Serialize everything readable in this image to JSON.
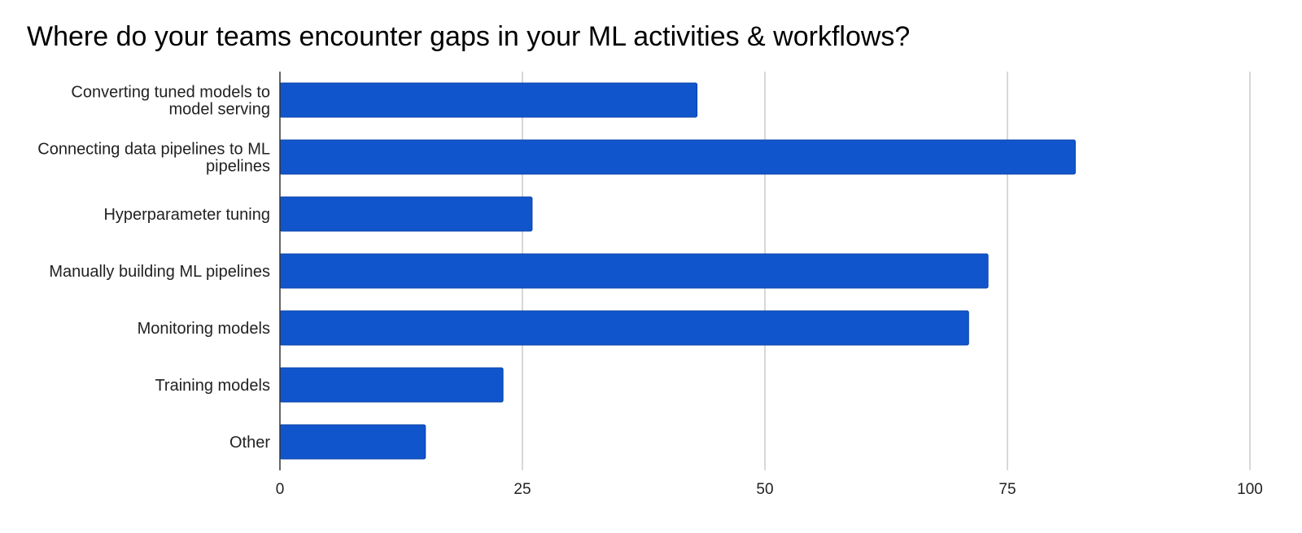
{
  "chart_data": {
    "type": "bar",
    "orientation": "horizontal",
    "title": "Where do your teams encounter gaps in your ML activities & workflows?",
    "categories": [
      "Converting tuned models to model serving",
      "Connecting data pipelines to ML pipelines",
      "Hyperparameter tuning",
      "Manually building ML pipelines",
      "Monitoring models",
      "Training models",
      "Other"
    ],
    "category_lines": [
      [
        "Converting tuned models to",
        "model serving"
      ],
      [
        "Connecting data pipelines to ML",
        "pipelines"
      ],
      [
        "Hyperparameter tuning"
      ],
      [
        "Manually building ML pipelines"
      ],
      [
        "Monitoring models"
      ],
      [
        "Training models"
      ],
      [
        "Other"
      ]
    ],
    "values": [
      43,
      82,
      26,
      73,
      71,
      23,
      15
    ],
    "xlim": [
      0,
      100
    ],
    "xticks": [
      0,
      25,
      50,
      75,
      100
    ],
    "xlabel": "",
    "ylabel": "",
    "grid": "vertical",
    "legend": "none",
    "bar_color": "#1155cc"
  }
}
